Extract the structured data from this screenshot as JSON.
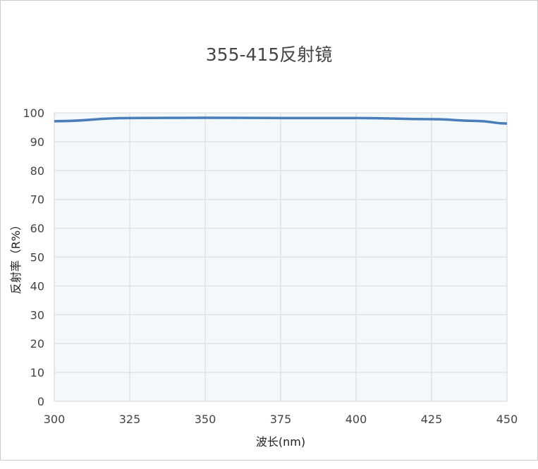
{
  "chart_data": {
    "type": "line",
    "title": "355-415反射镜",
    "xlabel": "波长(nm)",
    "ylabel": "反射率（R%）",
    "xlim": [
      300,
      450
    ],
    "ylim": [
      0,
      100
    ],
    "xticks": [
      300,
      325,
      350,
      375,
      400,
      425,
      450
    ],
    "yticks": [
      0,
      10,
      20,
      30,
      40,
      50,
      60,
      70,
      80,
      90,
      100
    ],
    "grid": true,
    "x": [
      300,
      325,
      350,
      375,
      400,
      425,
      440,
      450
    ],
    "y": [
      97.1,
      98.2,
      98.3,
      98.2,
      98.2,
      97.8,
      97.2,
      96.3
    ],
    "colors": {
      "line": "#4a7ebb",
      "plot_bg": "#f3f8fb",
      "grid": "#e2e2e2"
    }
  }
}
